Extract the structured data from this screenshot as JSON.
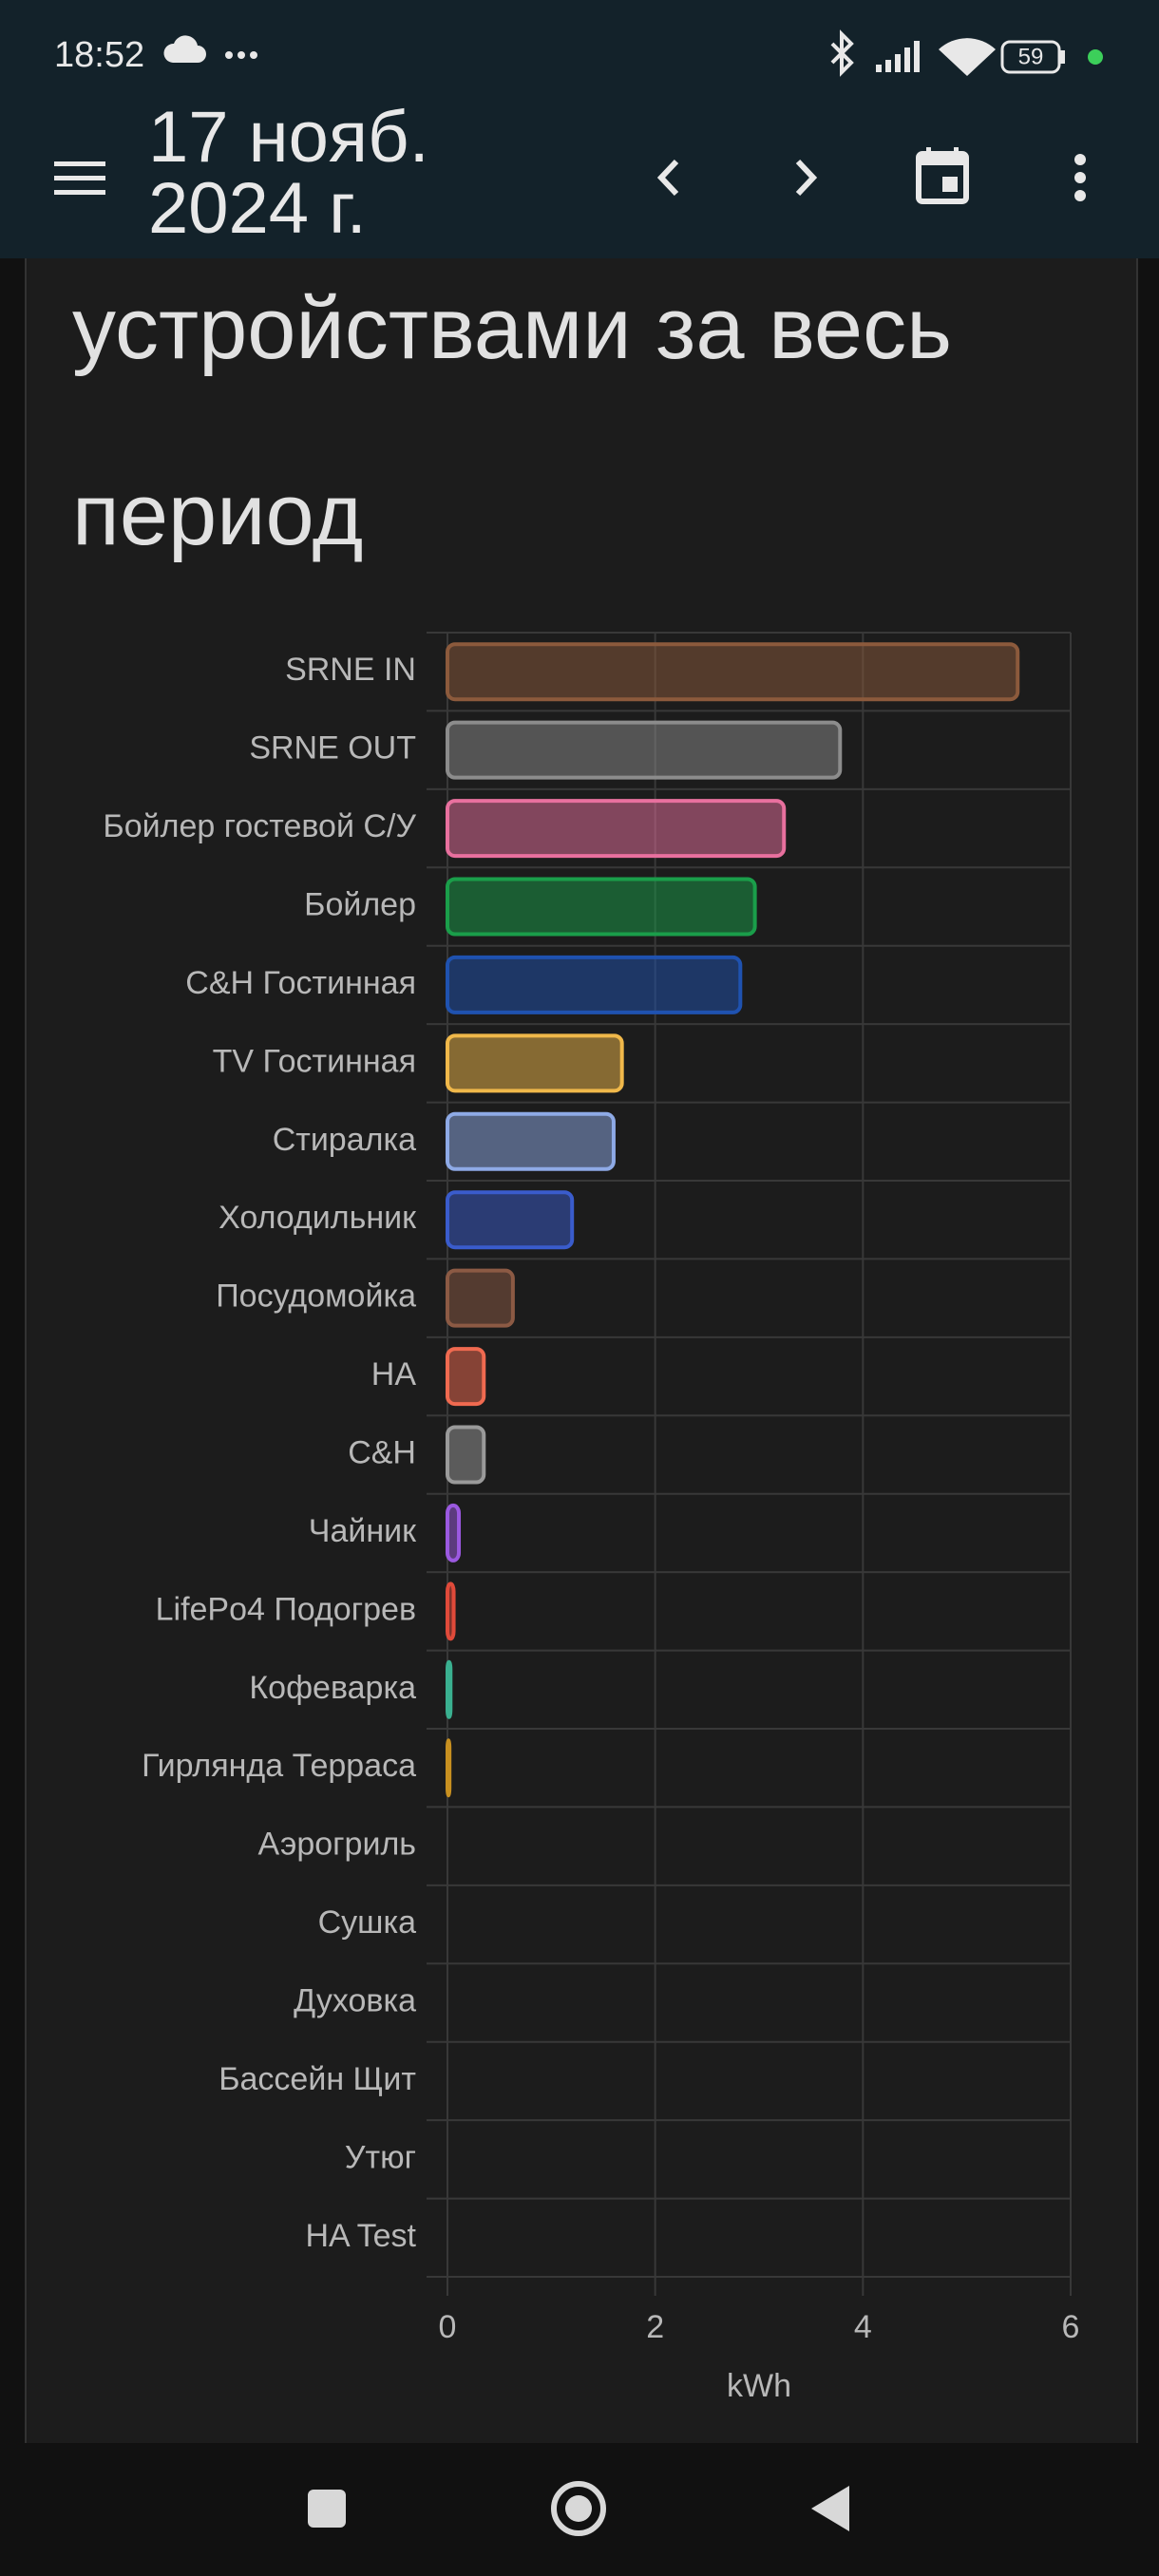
{
  "status_bar": {
    "time": "18:52",
    "battery": "59"
  },
  "app_bar": {
    "date_lines": [
      "17 нояб.",
      "2024 г."
    ]
  },
  "card": {
    "title": "устройствами за весь период"
  },
  "chart_data": {
    "type": "bar",
    "orientation": "horizontal",
    "categories": [
      "SRNE IN",
      "SRNE OUT",
      "Бойлер гостевой С/У",
      "Бойлер",
      "C&H Гостинная",
      "TV Гостинная",
      "Стиралка",
      "Холодильник",
      "Посудомойка",
      "HA",
      "C&H",
      "Чайник",
      "LifePo4 Подогрев",
      "Кофеварка",
      "Гирлянда Терраса",
      "Аэрогриль",
      "Сушка",
      "Духовка",
      "Бассейн Щит",
      "Утюг",
      "HA Test"
    ],
    "values": [
      5.49,
      3.78,
      3.24,
      2.96,
      2.82,
      1.68,
      1.6,
      1.2,
      0.63,
      0.35,
      0.35,
      0.11,
      0.06,
      0.03,
      0.02,
      0,
      0,
      0,
      0,
      0,
      0
    ],
    "colors": [
      "#8c5a3c",
      "#8c8c8c",
      "#e8709e",
      "#1a9e4a",
      "#1f52b0",
      "#f0b84a",
      "#8eaae6",
      "#3a5ccc",
      "#8c5a44",
      "#f06a50",
      "#9a9a9a",
      "#9b59e0",
      "#e04a3a",
      "#3ab090",
      "#c89020",
      "#6aa0d0",
      "#d0a040",
      "#a0a0a0",
      "#50c0c0",
      "#c070c0",
      "#80c050"
    ],
    "xlim": [
      0,
      6
    ],
    "xticks": [
      0,
      2,
      4,
      6
    ],
    "xlabel": "kWh",
    "grid": true
  }
}
